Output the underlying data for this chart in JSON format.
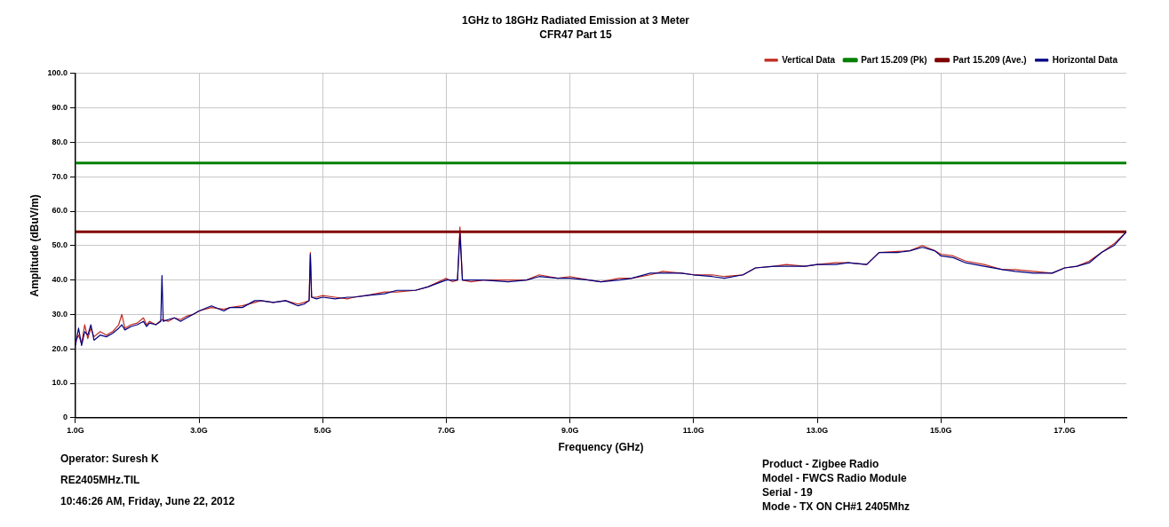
{
  "chart_data": {
    "type": "line",
    "title": "1GHz to 18GHz Radiated Emission at 3 Meter",
    "subtitle": "CFR47 Part 15",
    "xlabel": "Frequency (GHz)",
    "ylabel": "Amplitude (dBuV/m)",
    "xlim": [
      1,
      18
    ],
    "xticks": [
      {
        "value": 1,
        "label": "1.0G"
      },
      {
        "value": 3,
        "label": "3.0G"
      },
      {
        "value": 5,
        "label": "5.0G"
      },
      {
        "value": 7,
        "label": "7.0G"
      },
      {
        "value": 9,
        "label": "9.0G"
      },
      {
        "value": 11,
        "label": "11.0G"
      },
      {
        "value": 13,
        "label": "13.0G"
      },
      {
        "value": 15,
        "label": "15.0G"
      },
      {
        "value": 17,
        "label": "17.0G"
      }
    ],
    "ylim": [
      0,
      100
    ],
    "yticks": [
      0,
      {
        "value": 10,
        "label": "10.0"
      },
      {
        "value": 20,
        "label": "20.0"
      },
      {
        "value": 30,
        "label": "30.0"
      },
      {
        "value": 40,
        "label": "40.0"
      },
      {
        "value": 50,
        "label": "50.0"
      },
      {
        "value": 60,
        "label": "60.0"
      },
      {
        "value": 70,
        "label": "70.0"
      },
      {
        "value": 80,
        "label": "80.0"
      },
      {
        "value": 90,
        "label": "90.0"
      },
      {
        "value": 100,
        "label": "100.0"
      }
    ],
    "grid": true,
    "legend": "top right",
    "marker": "none",
    "line_style": "solid",
    "series": [
      {
        "name": "Vertical Data",
        "color": "#c0281e",
        "x": [
          1,
          1.05,
          1.1,
          1.15,
          1.2,
          1.25,
          1.3,
          1.4,
          1.5,
          1.6,
          1.7,
          1.75,
          1.8,
          1.9,
          2,
          2.1,
          2.15,
          2.2,
          2.3,
          2.4,
          2.5,
          2.6,
          2.7,
          2.8,
          2.9,
          3,
          3.2,
          3.4,
          3.5,
          3.7,
          3.9,
          4,
          4.2,
          4.4,
          4.6,
          4.7,
          4.78,
          4.8,
          4.82,
          4.9,
          5,
          5.2,
          5.4,
          5.5,
          5.7,
          6,
          6.2,
          6.5,
          6.7,
          7,
          7.1,
          7.18,
          7.22,
          7.26,
          7.4,
          7.6,
          8,
          8.3,
          8.5,
          8.8,
          9,
          9.3,
          9.5,
          9.8,
          10,
          10.3,
          10.5,
          10.8,
          11,
          11.3,
          11.5,
          11.8,
          12,
          12.3,
          12.5,
          12.8,
          13,
          13.3,
          13.5,
          13.8,
          14,
          14.3,
          14.5,
          14.7,
          14.9,
          15,
          15.2,
          15.4,
          15.7,
          16,
          16.2,
          16.5,
          16.8,
          17,
          17.2,
          17.4,
          17.6,
          17.8,
          18
        ],
        "values": [
          22,
          24,
          21.5,
          27,
          23,
          26,
          23.5,
          25,
          24,
          25,
          27,
          30,
          26,
          27,
          27.5,
          29,
          27,
          28,
          27,
          28.5,
          28,
          29,
          28.5,
          29.5,
          30,
          31,
          32,
          31.5,
          32,
          32.5,
          33.5,
          34,
          33.5,
          34,
          33,
          33.5,
          34,
          48,
          35,
          35,
          35.5,
          35,
          34.5,
          35,
          35.5,
          36.5,
          36.5,
          37,
          38,
          40.5,
          39.5,
          40,
          55.4,
          40,
          39.5,
          40,
          40,
          40,
          41.5,
          40.5,
          41,
          40,
          39.5,
          40.5,
          40.5,
          41.5,
          42.5,
          42,
          41.5,
          41.5,
          41,
          41.5,
          43.5,
          44,
          44.5,
          44,
          44.5,
          45,
          45,
          44.5,
          48,
          48.3,
          48.5,
          50,
          48.5,
          47.5,
          47,
          45.5,
          44.5,
          43,
          43,
          42.5,
          42,
          43.5,
          44,
          45.5,
          48,
          50.5,
          54
        ]
      },
      {
        "name": "Part 15.209 (Pk)",
        "color": "#008000",
        "x": [
          1,
          18
        ],
        "values": [
          74,
          74
        ]
      },
      {
        "name": "Part 15.209 (Ave.)",
        "color": "#800000",
        "x": [
          1,
          18
        ],
        "values": [
          54,
          54
        ]
      },
      {
        "name": "Horizontal Data",
        "color": "#000080",
        "x": [
          1,
          1.05,
          1.1,
          1.15,
          1.2,
          1.25,
          1.3,
          1.4,
          1.5,
          1.6,
          1.7,
          1.75,
          1.8,
          1.9,
          2,
          2.1,
          2.15,
          2.2,
          2.3,
          2.38,
          2.4,
          2.42,
          2.5,
          2.6,
          2.7,
          2.8,
          2.9,
          3,
          3.2,
          3.4,
          3.5,
          3.7,
          3.9,
          4,
          4.2,
          4.4,
          4.6,
          4.7,
          4.78,
          4.8,
          4.82,
          4.9,
          5,
          5.2,
          5.4,
          5.5,
          5.7,
          6,
          6.2,
          6.5,
          6.7,
          7,
          7.1,
          7.18,
          7.22,
          7.26,
          7.4,
          7.6,
          8,
          8.3,
          8.5,
          8.8,
          9,
          9.3,
          9.5,
          9.8,
          10,
          10.3,
          10.5,
          10.8,
          11,
          11.3,
          11.5,
          11.8,
          12,
          12.3,
          12.5,
          12.8,
          13,
          13.3,
          13.5,
          13.8,
          14,
          14.3,
          14.5,
          14.7,
          14.9,
          15,
          15.2,
          15.4,
          15.7,
          16,
          16.2,
          16.5,
          16.8,
          17,
          17.2,
          17.4,
          17.6,
          17.8,
          18
        ],
        "values": [
          21,
          26,
          21,
          25,
          24,
          27,
          22.5,
          24,
          23.5,
          24.5,
          26,
          27,
          25.5,
          26.5,
          27,
          28,
          26.5,
          27.5,
          27,
          28,
          41.3,
          28,
          28.5,
          29,
          28,
          29,
          30,
          31,
          32.5,
          31,
          32,
          32,
          34,
          34,
          33.5,
          34,
          32.5,
          33,
          34,
          47.5,
          35,
          34.5,
          35,
          34.5,
          35,
          35,
          35.5,
          36,
          37,
          37,
          38,
          40,
          40,
          40,
          53.5,
          40,
          40,
          40,
          39.5,
          40,
          41,
          40.5,
          40.5,
          40,
          39.5,
          40,
          40.5,
          42,
          42,
          42,
          41.5,
          41,
          40.5,
          41.5,
          43.5,
          44,
          44,
          44,
          44.5,
          44.5,
          45,
          44.5,
          48,
          48,
          48.5,
          49.5,
          48.5,
          47,
          46.5,
          45,
          44,
          43,
          42.5,
          42,
          42,
          43.5,
          44,
          45,
          48,
          50,
          54
        ]
      }
    ],
    "annotations": [
      "Operator: Suresh K",
      "RE2405MHz.TIL",
      "10:46:26 AM, Friday, June 22, 2012",
      "Product - Zigbee Radio",
      "Model - FWCS Radio Module",
      "Serial - 19",
      "Mode - TX ON CH#1 2405Mhz"
    ]
  }
}
